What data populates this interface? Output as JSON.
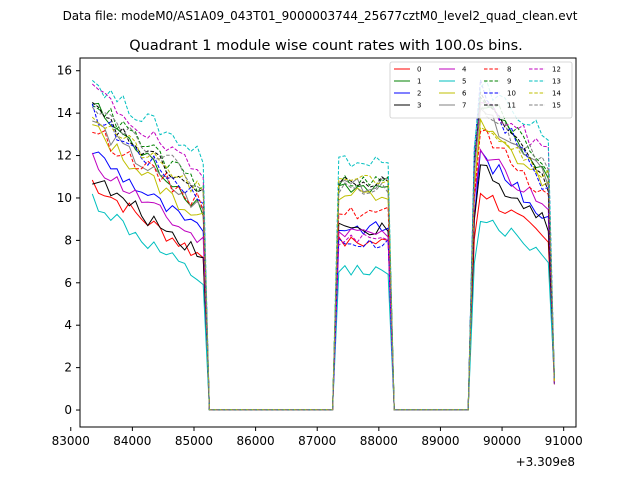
{
  "suptitle": "Data file: modeM0/AS1A09_043T01_9000003744_25677cztM0_level2_quad_clean.evt",
  "chart_data": {
    "type": "line",
    "title": "Quadrant 1 module wise count rates with 100.0s bins.",
    "xlabel": "",
    "ylabel": "",
    "x_offset_label": "+3.309e8",
    "xlim": [
      83150,
      91200
    ],
    "ylim": [
      -0.8,
      16.6
    ],
    "xticks": [
      83000,
      84000,
      85000,
      86000,
      87000,
      88000,
      89000,
      90000,
      91000
    ],
    "xtick_labels": [
      "83000",
      "84000",
      "85000",
      "86000",
      "87000",
      "88000",
      "89000",
      "90000",
      "91000"
    ],
    "yticks": [
      0,
      2,
      4,
      6,
      8,
      10,
      12,
      14,
      16
    ],
    "ytick_labels": [
      "0",
      "2",
      "4",
      "6",
      "8",
      "10",
      "12",
      "14",
      "16"
    ],
    "legend_position": "top-right",
    "segments": [
      {
        "start": 83350,
        "end": 85250,
        "shape": "decay"
      },
      {
        "start": 85250,
        "end": 87250,
        "shape": "zero"
      },
      {
        "start": 87250,
        "end": 88250,
        "shape": "flat"
      },
      {
        "start": 88250,
        "end": 89450,
        "shape": "zero"
      },
      {
        "start": 89450,
        "end": 90850,
        "shape": "peak"
      }
    ],
    "series": [
      {
        "name": "0",
        "color": "#ff0000",
        "dash": "solid",
        "first": 10.8,
        "last": 7.2,
        "flat": 7.9,
        "peak": 10.4,
        "peak_end": 7.8
      },
      {
        "name": "1",
        "color": "#008000",
        "dash": "solid",
        "first": 14.5,
        "last": 9.5,
        "flat": 10.5,
        "peak": 14.6,
        "peak_end": 11.2
      },
      {
        "name": "2",
        "color": "#0000ff",
        "dash": "solid",
        "first": 12.3,
        "last": 8.3,
        "flat": 8.6,
        "peak": 12.0,
        "peak_end": 9.0
      },
      {
        "name": "3",
        "color": "#000000",
        "dash": "solid",
        "first": 11.0,
        "last": 7.4,
        "flat": 8.5,
        "peak": 11.5,
        "peak_end": 8.7
      },
      {
        "name": "4",
        "color": "#bf00bf",
        "dash": "solid",
        "first": 11.8,
        "last": 7.9,
        "flat": 8.3,
        "peak": 12.4,
        "peak_end": 9.3
      },
      {
        "name": "5",
        "color": "#00bfbf",
        "dash": "solid",
        "first": 10.0,
        "last": 6.0,
        "flat": 6.6,
        "peak": 9.2,
        "peak_end": 7.2
      },
      {
        "name": "6",
        "color": "#bfbf00",
        "dash": "solid",
        "first": 13.4,
        "last": 8.9,
        "flat": 10.2,
        "peak": 13.4,
        "peak_end": 10.6
      },
      {
        "name": "7",
        "color": "#808080",
        "dash": "solid",
        "first": 13.7,
        "last": 9.4,
        "flat": 10.6,
        "peak": 14.1,
        "peak_end": 10.8
      },
      {
        "name": "8",
        "color": "#ff0000",
        "dash": "dashed",
        "first": 13.3,
        "last": 9.7,
        "flat": 9.3,
        "peak": 13.2,
        "peak_end": 10.0
      },
      {
        "name": "9",
        "color": "#008000",
        "dash": "dashed",
        "first": 14.7,
        "last": 10.4,
        "flat": 10.8,
        "peak": 15.0,
        "peak_end": 11.4
      },
      {
        "name": "10",
        "color": "#0000ff",
        "dash": "dashed",
        "first": 14.1,
        "last": 9.9,
        "flat": 7.9,
        "peak": 15.2,
        "peak_end": 10.3
      },
      {
        "name": "11",
        "color": "#000000",
        "dash": "dashed",
        "first": 14.3,
        "last": 10.1,
        "flat": 10.7,
        "peak": 14.8,
        "peak_end": 10.5
      },
      {
        "name": "12",
        "color": "#bf00bf",
        "dash": "dashed",
        "first": 15.3,
        "last": 11.0,
        "flat": 8.0,
        "peak": 14.5,
        "peak_end": 12.2
      },
      {
        "name": "13",
        "color": "#00bfbf",
        "dash": "dashed",
        "first": 15.6,
        "last": 12.0,
        "flat": 11.7,
        "peak": 15.4,
        "peak_end": 12.9
      },
      {
        "name": "14",
        "color": "#bfbf00",
        "dash": "dashed",
        "first": 14.0,
        "last": 10.2,
        "flat": 10.9,
        "peak": 13.7,
        "peak_end": 11.1
      },
      {
        "name": "15",
        "color": "#808080",
        "dash": "dashed",
        "first": 14.6,
        "last": 10.6,
        "flat": 10.4,
        "peak": 14.2,
        "peak_end": 11.5
      }
    ]
  }
}
